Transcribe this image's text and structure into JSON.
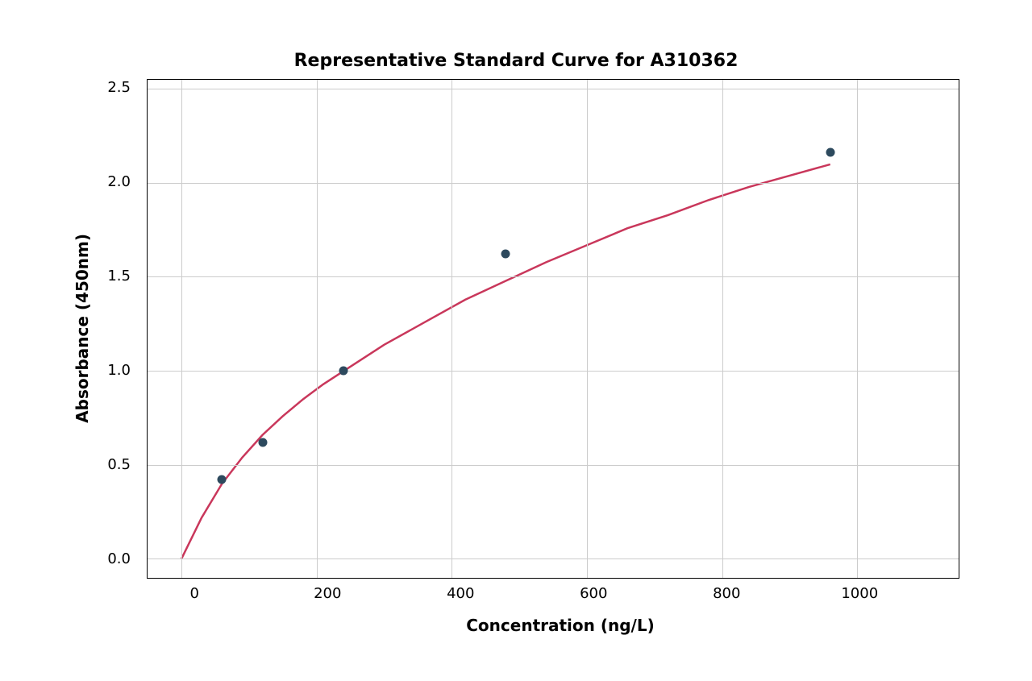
{
  "chart": {
    "type": "scatter-with-curve",
    "title": "Representative Standard Curve for A310362",
    "title_fontsize": 22,
    "title_fontweight": "bold",
    "xlabel": "Concentration (ng/L)",
    "ylabel": "Absorbance (450nm)",
    "label_fontsize": 20,
    "label_fontweight": "bold",
    "tick_fontsize": 18,
    "background_color": "#ffffff",
    "border_color": "#000000",
    "grid_color": "#cccccc",
    "grid_on": true,
    "xlim": [
      -50,
      1150
    ],
    "ylim": [
      -0.1,
      2.55
    ],
    "xticks": [
      0,
      200,
      400,
      600,
      800,
      1000
    ],
    "yticks": [
      0.0,
      0.5,
      1.0,
      1.5,
      2.0,
      2.5
    ],
    "ytick_labels": [
      "0.0",
      "0.5",
      "1.0",
      "1.5",
      "2.0",
      "2.5"
    ],
    "scatter": {
      "x": [
        60,
        120,
        240,
        480,
        960
      ],
      "y": [
        0.42,
        0.62,
        1.0,
        1.62,
        2.16
      ],
      "color": "#2d4a5e",
      "marker_size": 11
    },
    "curve": {
      "x": [
        0,
        30,
        60,
        90,
        120,
        150,
        180,
        210,
        240,
        300,
        360,
        420,
        480,
        540,
        600,
        660,
        720,
        780,
        840,
        900,
        960
      ],
      "y": [
        0.0,
        0.22,
        0.4,
        0.54,
        0.66,
        0.76,
        0.85,
        0.93,
        1.0,
        1.14,
        1.26,
        1.38,
        1.48,
        1.58,
        1.67,
        1.76,
        1.83,
        1.91,
        1.98,
        2.04,
        2.1
      ],
      "color": "#c9375b",
      "line_width": 2.5
    }
  }
}
